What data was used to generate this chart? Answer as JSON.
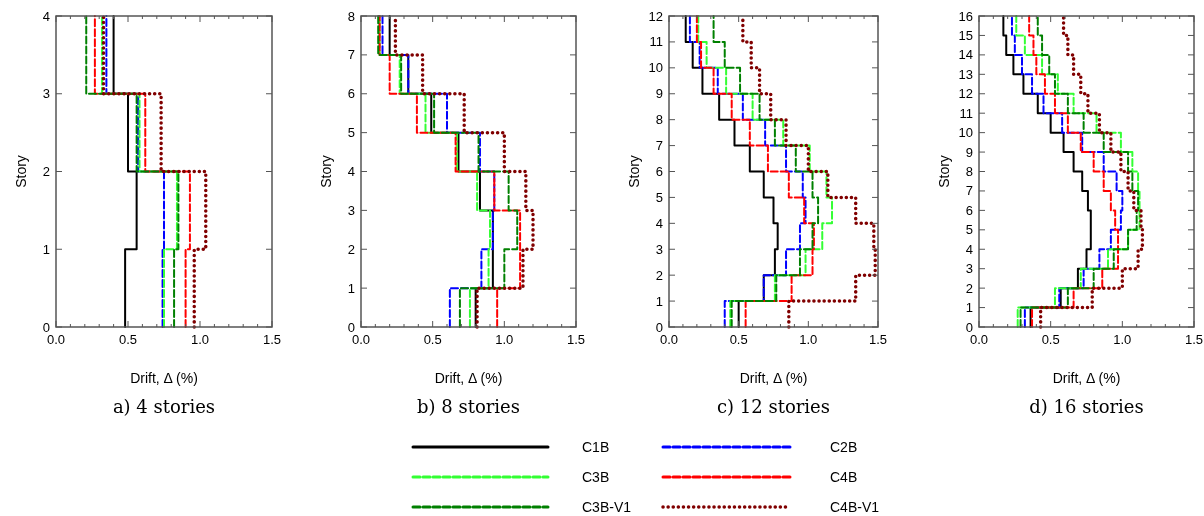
{
  "chart_data": [
    {
      "type": "step",
      "orientation": "horizontal",
      "title": "a) 4 stories",
      "xlabel": "Drift, Δ (%)",
      "ylabel": "Story",
      "legend": "bottom",
      "xlim": [
        0,
        1.5
      ],
      "ylim": [
        0,
        4
      ],
      "xticks": [
        {
          "value": 0,
          "label": "0.0"
        },
        {
          "value": 0.1,
          "label": null
        },
        {
          "value": 0.2,
          "label": null
        },
        {
          "value": 0.3,
          "label": null
        },
        {
          "value": 0.4,
          "label": null
        },
        {
          "value": 0.5,
          "label": "0.5"
        },
        {
          "value": 0.6,
          "label": null
        },
        {
          "value": 0.7,
          "label": null
        },
        {
          "value": 0.8,
          "label": null
        },
        {
          "value": 0.9,
          "label": null
        },
        {
          "value": 1,
          "label": "1.0"
        },
        {
          "value": 1.1,
          "label": null
        },
        {
          "value": 1.2,
          "label": null
        },
        {
          "value": 1.3,
          "label": null
        },
        {
          "value": 1.4,
          "label": null
        },
        {
          "value": 1.5,
          "label": "1.5"
        }
      ],
      "yticks": [
        0,
        1,
        2,
        3,
        4
      ],
      "x": [
        0,
        1,
        2,
        3,
        4
      ],
      "series": [
        {
          "name": "C1B",
          "color": "#000000",
          "line_style": "solid",
          "values": [
            0.48,
            0.56,
            0.5,
            0.4,
            0.4
          ]
        },
        {
          "name": "C2B",
          "color": "#0000ff",
          "line_style": "dashed",
          "values": [
            0.74,
            0.75,
            0.57,
            0.35,
            0.35
          ]
        },
        {
          "name": "C3B",
          "color": "#33ff33",
          "line_style": "dashed",
          "values": [
            0.75,
            0.84,
            0.58,
            0.32,
            0.32
          ]
        },
        {
          "name": "C4B",
          "color": "#ff0000",
          "line_style": "dashed",
          "values": [
            0.9,
            0.93,
            0.62,
            0.27,
            0.27
          ]
        },
        {
          "name": "C3B-V1",
          "color": "#008000",
          "line_style": "dashed",
          "values": [
            0.82,
            0.85,
            0.56,
            0.21,
            0.21
          ]
        },
        {
          "name": "C4B-V1",
          "color": "#800000",
          "line_style": "dotted",
          "values": [
            0.96,
            1.04,
            0.73,
            0.33,
            0.33
          ]
        }
      ]
    },
    {
      "type": "step",
      "orientation": "horizontal",
      "title": "b) 8 stories",
      "xlabel": "Drift, Δ (%)",
      "ylabel": "Story",
      "xlim": [
        0,
        1.5
      ],
      "ylim": [
        0,
        8
      ],
      "xticks": [
        {
          "value": 0,
          "label": "0.0"
        },
        {
          "value": 0.1,
          "label": null
        },
        {
          "value": 0.2,
          "label": null
        },
        {
          "value": 0.3,
          "label": null
        },
        {
          "value": 0.4,
          "label": null
        },
        {
          "value": 0.5,
          "label": "0.5"
        },
        {
          "value": 0.6,
          "label": null
        },
        {
          "value": 0.7,
          "label": null
        },
        {
          "value": 0.8,
          "label": null
        },
        {
          "value": 0.9,
          "label": null
        },
        {
          "value": 1,
          "label": "1.0"
        },
        {
          "value": 1.1,
          "label": null
        },
        {
          "value": 1.2,
          "label": null
        },
        {
          "value": 1.3,
          "label": null
        },
        {
          "value": 1.4,
          "label": null
        },
        {
          "value": 1.5,
          "label": "1.5"
        }
      ],
      "yticks": [
        0,
        1,
        2,
        3,
        4,
        5,
        6,
        7,
        8
      ],
      "x": [
        0,
        1,
        2,
        3,
        4,
        5,
        6,
        7,
        8
      ],
      "series": [
        {
          "color": "#000000",
          "line_style": "solid",
          "values": [
            0.8,
            0.92,
            0.92,
            0.83,
            0.68,
            0.49,
            0.33,
            0.2,
            0.2
          ]
        },
        {
          "color": "#0000ff",
          "line_style": "dashed",
          "values": [
            0.62,
            0.84,
            0.92,
            0.93,
            0.83,
            0.6,
            0.33,
            0.15,
            0.15
          ]
        },
        {
          "color": "#33ff33",
          "line_style": "dashed",
          "values": [
            0.76,
            0.89,
            0.9,
            0.81,
            0.67,
            0.45,
            0.27,
            0.13,
            0.13
          ]
        },
        {
          "color": "#ff0000",
          "line_style": "dashed",
          "values": [
            0.95,
            1.11,
            1.11,
            0.93,
            0.66,
            0.39,
            0.2,
            0.13,
            0.13
          ]
        },
        {
          "color": "#008000",
          "line_style": "dashed",
          "values": [
            0.69,
            1.0,
            1.09,
            1.03,
            0.82,
            0.51,
            0.28,
            0.12,
            0.12
          ]
        },
        {
          "color": "#800000",
          "line_style": "dotted",
          "values": [
            0.81,
            1.13,
            1.2,
            1.15,
            1.0,
            0.72,
            0.43,
            0.24,
            0.24
          ]
        }
      ]
    },
    {
      "type": "step",
      "orientation": "horizontal",
      "title": "c) 12 stories",
      "xlabel": "Drift, Δ (%)",
      "ylabel": "Story",
      "xlim": [
        0,
        1.5
      ],
      "ylim": [
        0,
        12
      ],
      "xticks": [
        {
          "value": 0,
          "label": "0.0"
        },
        {
          "value": 0.1,
          "label": null
        },
        {
          "value": 0.2,
          "label": null
        },
        {
          "value": 0.3,
          "label": null
        },
        {
          "value": 0.4,
          "label": null
        },
        {
          "value": 0.5,
          "label": "0.5"
        },
        {
          "value": 0.6,
          "label": null
        },
        {
          "value": 0.7,
          "label": null
        },
        {
          "value": 0.8,
          "label": null
        },
        {
          "value": 0.9,
          "label": null
        },
        {
          "value": 1,
          "label": "1.0"
        },
        {
          "value": 1.1,
          "label": null
        },
        {
          "value": 1.2,
          "label": null
        },
        {
          "value": 1.3,
          "label": null
        },
        {
          "value": 1.4,
          "label": null
        },
        {
          "value": 1.5,
          "label": "1.5"
        }
      ],
      "yticks": [
        0,
        1,
        2,
        3,
        4,
        5,
        6,
        7,
        8,
        9,
        10,
        11,
        12
      ],
      "x": [
        0,
        1,
        2,
        3,
        4,
        5,
        6,
        7,
        8,
        9,
        10,
        11,
        12
      ],
      "series": [
        {
          "color": "#000000",
          "line_style": "solid",
          "values": [
            0.5,
            0.68,
            0.76,
            0.78,
            0.75,
            0.68,
            0.58,
            0.47,
            0.36,
            0.24,
            0.17,
            0.12,
            0.12
          ]
        },
        {
          "color": "#0000ff",
          "line_style": "dashed",
          "values": [
            0.4,
            0.68,
            0.84,
            0.94,
            0.98,
            0.96,
            0.84,
            0.69,
            0.53,
            0.35,
            0.22,
            0.15,
            0.15
          ]
        },
        {
          "color": "#33ff33",
          "line_style": "dashed",
          "values": [
            0.44,
            0.76,
            0.98,
            1.1,
            1.17,
            1.13,
            1.01,
            0.82,
            0.6,
            0.41,
            0.27,
            0.21,
            0.21
          ]
        },
        {
          "color": "#ff0000",
          "line_style": "dashed",
          "values": [
            0.55,
            0.88,
            1.03,
            1.04,
            0.97,
            0.86,
            0.71,
            0.58,
            0.45,
            0.32,
            0.23,
            0.2,
            0.2
          ]
        },
        {
          "color": "#008000",
          "line_style": "dashed",
          "values": [
            0.45,
            0.77,
            0.94,
            1.03,
            1.07,
            1.03,
            0.91,
            0.76,
            0.65,
            0.51,
            0.4,
            0.32,
            0.32
          ]
        },
        {
          "color": "#800000",
          "line_style": "dotted",
          "values": [
            0.86,
            1.34,
            1.48,
            1.47,
            1.34,
            1.14,
            1.0,
            0.84,
            0.73,
            0.65,
            0.59,
            0.53,
            0.53
          ]
        }
      ]
    },
    {
      "type": "step",
      "orientation": "horizontal",
      "title": "d) 16 stories",
      "xlabel": "Drift, Δ (%)",
      "ylabel": "Story",
      "xlim": [
        0,
        1.5
      ],
      "ylim": [
        0,
        16
      ],
      "xticks": [
        {
          "value": 0,
          "label": "0.0"
        },
        {
          "value": 0.1,
          "label": null
        },
        {
          "value": 0.2,
          "label": null
        },
        {
          "value": 0.3,
          "label": null
        },
        {
          "value": 0.4,
          "label": null
        },
        {
          "value": 0.5,
          "label": "0.5"
        },
        {
          "value": 0.6,
          "label": null
        },
        {
          "value": 0.7,
          "label": null
        },
        {
          "value": 0.8,
          "label": null
        },
        {
          "value": 0.9,
          "label": null
        },
        {
          "value": 1,
          "label": "1.0"
        },
        {
          "value": 1.1,
          "label": null
        },
        {
          "value": 1.2,
          "label": null
        },
        {
          "value": 1.3,
          "label": null
        },
        {
          "value": 1.4,
          "label": null
        },
        {
          "value": 1.5,
          "label": "1.5"
        }
      ],
      "yticks": [
        0,
        1,
        2,
        3,
        4,
        5,
        6,
        7,
        8,
        9,
        10,
        11,
        12,
        13,
        14,
        15,
        16
      ],
      "x": [
        0,
        1,
        2,
        3,
        4,
        5,
        6,
        7,
        8,
        9,
        10,
        11,
        12,
        13,
        14,
        15,
        16
      ],
      "series": [
        {
          "color": "#000000",
          "line_style": "solid",
          "values": [
            0.36,
            0.57,
            0.69,
            0.75,
            0.78,
            0.78,
            0.76,
            0.72,
            0.66,
            0.59,
            0.5,
            0.41,
            0.31,
            0.24,
            0.19,
            0.17,
            0.17
          ]
        },
        {
          "color": "#0000ff",
          "line_style": "dashed",
          "values": [
            0.32,
            0.56,
            0.73,
            0.84,
            0.92,
            0.99,
            1.0,
            0.96,
            0.87,
            0.72,
            0.58,
            0.45,
            0.37,
            0.3,
            0.25,
            0.23,
            0.23
          ]
        },
        {
          "color": "#33ff33",
          "line_style": "dashed",
          "values": [
            0.27,
            0.53,
            0.71,
            0.9,
            1.04,
            1.12,
            1.12,
            1.11,
            1.07,
            0.99,
            0.82,
            0.66,
            0.55,
            0.44,
            0.32,
            0.26,
            0.26
          ]
        },
        {
          "color": "#ff0000",
          "line_style": "dashed",
          "values": [
            0.37,
            0.66,
            0.86,
            0.97,
            0.97,
            0.95,
            0.92,
            0.87,
            0.8,
            0.71,
            0.62,
            0.53,
            0.46,
            0.4,
            0.38,
            0.35,
            0.35
          ]
        },
        {
          "color": "#008000",
          "line_style": "dashed",
          "values": [
            0.29,
            0.62,
            0.8,
            0.94,
            1.04,
            1.1,
            1.11,
            1.07,
            1.04,
            0.87,
            0.73,
            0.62,
            0.53,
            0.49,
            0.44,
            0.41,
            0.41
          ]
        },
        {
          "color": "#800000",
          "line_style": "dotted",
          "values": [
            0.43,
            0.79,
            1.0,
            1.11,
            1.14,
            1.13,
            1.08,
            1.04,
            0.99,
            0.92,
            0.84,
            0.76,
            0.71,
            0.66,
            0.62,
            0.59,
            0.59
          ]
        }
      ]
    }
  ]
}
